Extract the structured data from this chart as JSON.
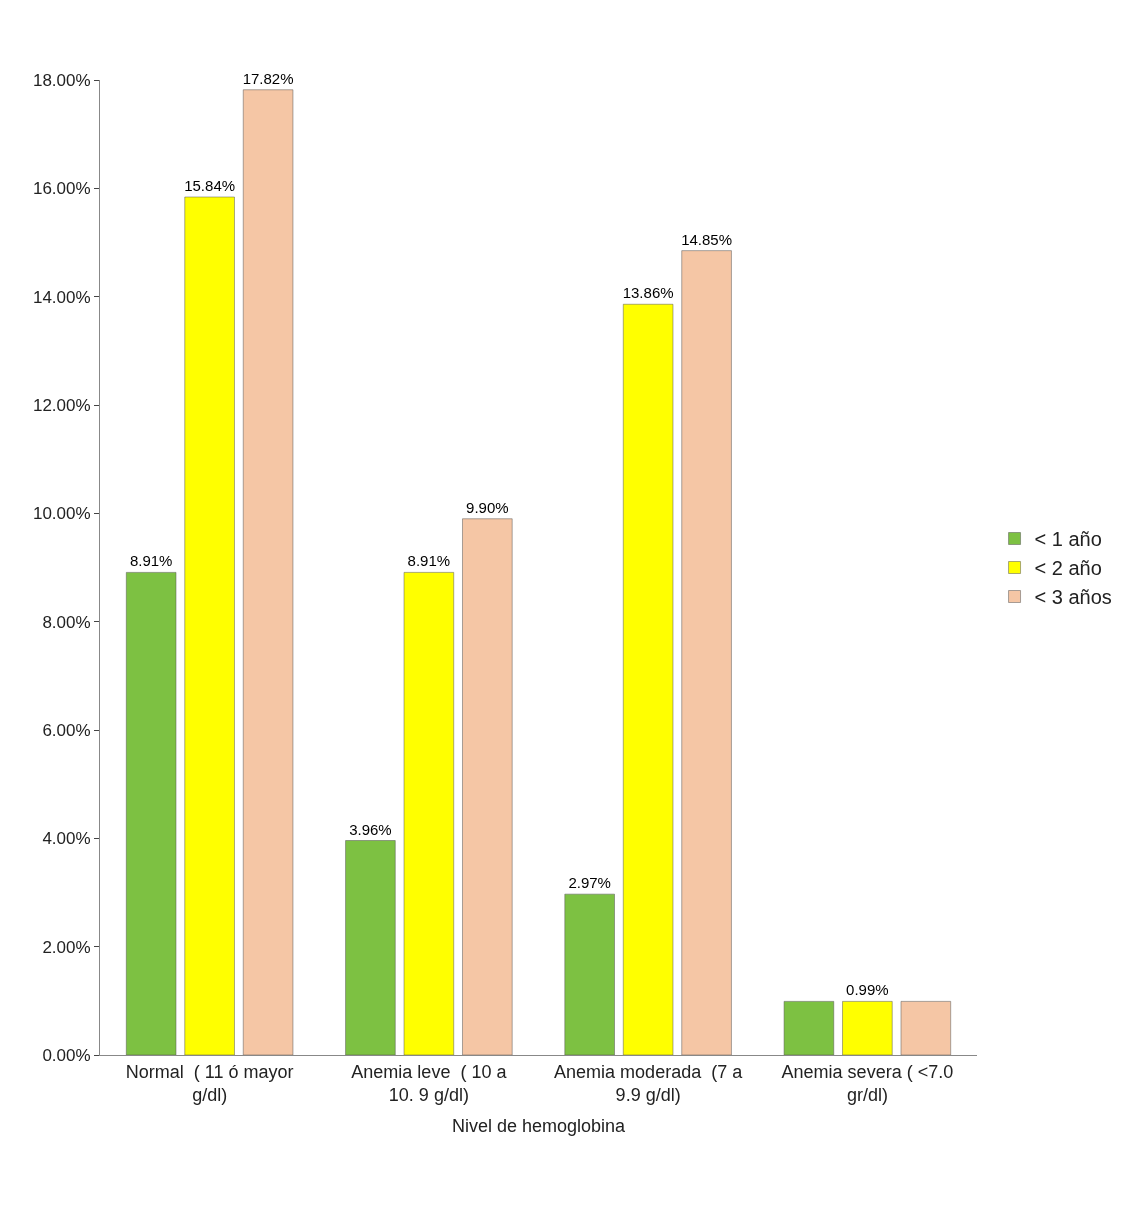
{
  "chart_data": {
    "type": "bar",
    "categories": [
      "Normal  ( 11 ó mayor g/dl)",
      "Anemia leve  ( 10 a 10. 9 g/dl)",
      "Anemia moderada  (7 a 9.9 g/dl)",
      "Anemia severa ( <7.0 gr/dl)"
    ],
    "xlabel": "Nivel de hemoglobina",
    "series": [
      {
        "name": "< 1 año",
        "color": "#7dc142",
        "values": [
          8.91,
          3.96,
          2.97,
          0.99
        ],
        "value_labels": [
          "8.91%",
          "3.96%",
          "2.97%",
          null
        ]
      },
      {
        "name": "< 2 año",
        "color": "#ffff00",
        "values": [
          15.84,
          8.91,
          13.86,
          0.99
        ],
        "value_labels": [
          "15.84%",
          "8.91%",
          "13.86%",
          "0.99%"
        ]
      },
      {
        "name": "< 3 años",
        "color": "#f5c6a5",
        "values": [
          17.82,
          9.9,
          14.85,
          0.99
        ],
        "value_labels": [
          "17.82%",
          "9.90%",
          "14.85%",
          null
        ]
      }
    ],
    "ylim": [
      0,
      18
    ],
    "yticks": [
      {
        "value": 0,
        "label": "0.00%"
      },
      {
        "value": 2,
        "label": "2.00%"
      },
      {
        "value": 4,
        "label": "4.00%"
      },
      {
        "value": 6,
        "label": "6.00%"
      },
      {
        "value": 8,
        "label": "8.00%"
      },
      {
        "value": 10,
        "label": "10.00%"
      },
      {
        "value": 12,
        "label": "12.00%"
      },
      {
        "value": 14,
        "label": "14.00%"
      },
      {
        "value": 16,
        "label": "16.00%"
      },
      {
        "value": 18,
        "label": "18.00%"
      }
    ],
    "legend": "right"
  }
}
